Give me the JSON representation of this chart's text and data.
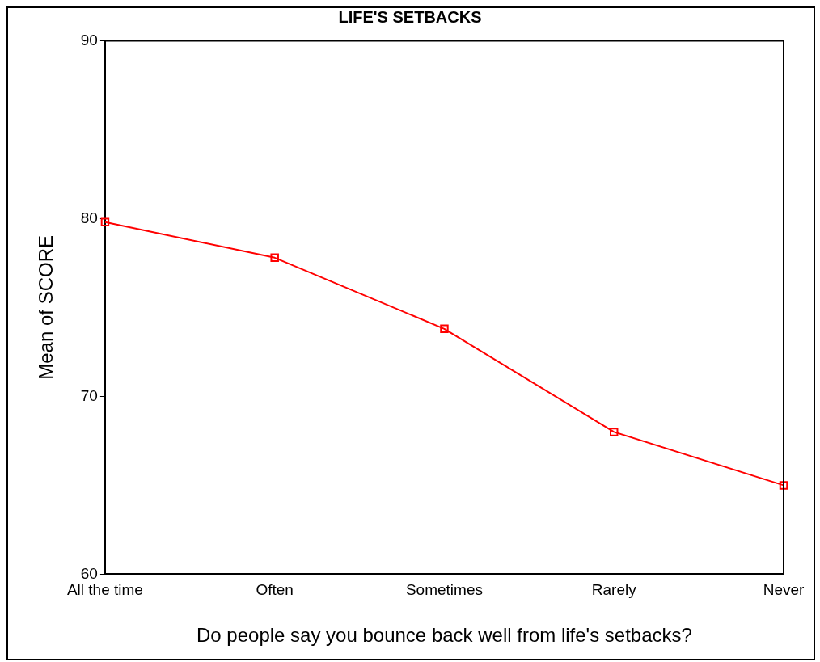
{
  "chart_data": {
    "type": "line",
    "title": "LIFE'S SETBACKS",
    "xlabel": "Do people say you bounce back well from life's setbacks?",
    "ylabel": "Mean of SCORE",
    "categories": [
      "All the time",
      "Often",
      "Sometimes",
      "Rarely",
      "Never"
    ],
    "series": [
      {
        "color": "#ff0000",
        "values": [
          79.8,
          77.8,
          73.8,
          68.0,
          65.0
        ]
      }
    ],
    "ylim": [
      60,
      90
    ],
    "yticks": [
      60,
      70,
      80,
      90
    ],
    "grid": false,
    "legend": false,
    "marker": "square",
    "line_style": "solid"
  }
}
